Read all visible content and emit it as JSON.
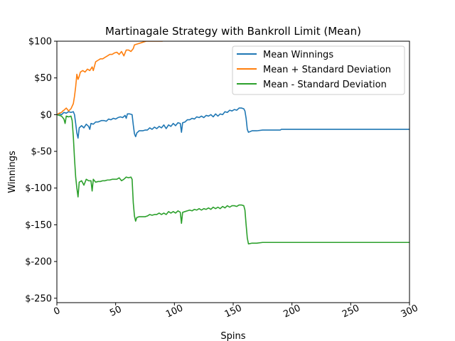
{
  "chart_data": {
    "type": "line",
    "title": "Martinagale Strategy with Bankroll Limit (Mean)",
    "xlabel": "Spins",
    "ylabel": "Winnings",
    "xlim": [
      0,
      300
    ],
    "ylim": [
      -256,
      100
    ],
    "x_ticks": [
      0,
      50,
      100,
      150,
      200,
      250,
      300
    ],
    "y_ticks": [
      {
        "value": 100,
        "label": "$100"
      },
      {
        "value": 50,
        "label": "$50"
      },
      {
        "value": 0,
        "label": "$0"
      },
      {
        "value": -50,
        "label": "$-50"
      },
      {
        "value": -100,
        "label": "$-100"
      },
      {
        "value": -150,
        "label": "$-150"
      },
      {
        "value": -200,
        "label": "$-200"
      },
      {
        "value": -250,
        "label": "$-250"
      }
    ],
    "grid": false,
    "legend_position": "top-right",
    "series": [
      {
        "name": "Mean Winnings",
        "color": "#1f77b4",
        "points": [
          [
            0,
            0
          ],
          [
            2,
            1
          ],
          [
            4,
            0
          ],
          [
            6,
            3
          ],
          [
            8,
            2
          ],
          [
            10,
            4
          ],
          [
            12,
            3
          ],
          [
            14,
            4
          ],
          [
            15,
            0
          ],
          [
            16,
            -12
          ],
          [
            17,
            -25
          ],
          [
            18,
            -32
          ],
          [
            19,
            -18
          ],
          [
            21,
            -15
          ],
          [
            23,
            -18
          ],
          [
            25,
            -13
          ],
          [
            27,
            -16
          ],
          [
            28,
            -20
          ],
          [
            29,
            -12
          ],
          [
            31,
            -13
          ],
          [
            33,
            -10
          ],
          [
            35,
            -10
          ],
          [
            38,
            -8
          ],
          [
            40,
            -8
          ],
          [
            42,
            -9
          ],
          [
            44,
            -6
          ],
          [
            46,
            -7
          ],
          [
            48,
            -5
          ],
          [
            50,
            -6
          ],
          [
            52,
            -4
          ],
          [
            54,
            -3
          ],
          [
            56,
            -4
          ],
          [
            58,
            -1
          ],
          [
            59,
            -5
          ],
          [
            60,
            1
          ],
          [
            62,
            1
          ],
          [
            64,
            0
          ],
          [
            65,
            -14
          ],
          [
            66,
            -26
          ],
          [
            67,
            -30
          ],
          [
            68,
            -25
          ],
          [
            70,
            -22
          ],
          [
            73,
            -22
          ],
          [
            75,
            -21
          ],
          [
            77,
            -21
          ],
          [
            79,
            -18
          ],
          [
            81,
            -20
          ],
          [
            83,
            -17
          ],
          [
            85,
            -19
          ],
          [
            87,
            -16
          ],
          [
            89,
            -18
          ],
          [
            91,
            -14
          ],
          [
            93,
            -19
          ],
          [
            95,
            -14
          ],
          [
            97,
            -16
          ],
          [
            99,
            -12
          ],
          [
            101,
            -15
          ],
          [
            103,
            -11
          ],
          [
            105,
            -12
          ],
          [
            106,
            -24
          ],
          [
            107,
            -11
          ],
          [
            109,
            -10
          ],
          [
            111,
            -7
          ],
          [
            113,
            -7
          ],
          [
            115,
            -5
          ],
          [
            117,
            -6
          ],
          [
            119,
            -3
          ],
          [
            121,
            -4
          ],
          [
            123,
            -2
          ],
          [
            125,
            -4
          ],
          [
            127,
            -1
          ],
          [
            129,
            -2
          ],
          [
            131,
            0
          ],
          [
            133,
            -3
          ],
          [
            135,
            1
          ],
          [
            137,
            -2
          ],
          [
            139,
            1
          ],
          [
            141,
            0
          ],
          [
            143,
            4
          ],
          [
            145,
            3
          ],
          [
            147,
            6
          ],
          [
            149,
            5
          ],
          [
            151,
            7
          ],
          [
            153,
            6
          ],
          [
            155,
            9
          ],
          [
            157,
            9
          ],
          [
            159,
            8
          ],
          [
            160,
            5
          ],
          [
            161,
            -5
          ],
          [
            162,
            -20
          ],
          [
            163,
            -24
          ],
          [
            166,
            -22
          ],
          [
            170,
            -22
          ],
          [
            175,
            -21
          ],
          [
            180,
            -21
          ],
          [
            185,
            -21
          ],
          [
            190,
            -21
          ],
          [
            191,
            -20
          ],
          [
            192,
            -20
          ],
          [
            200,
            -20
          ],
          [
            250,
            -20
          ],
          [
            300,
            -20
          ]
        ]
      },
      {
        "name": "Mean + Standard Deviation",
        "color": "#ff7f0e",
        "points": [
          [
            0,
            0
          ],
          [
            2,
            2
          ],
          [
            4,
            3
          ],
          [
            5,
            5
          ],
          [
            6,
            6
          ],
          [
            8,
            9
          ],
          [
            10,
            5
          ],
          [
            12,
            8
          ],
          [
            14,
            15
          ],
          [
            15,
            25
          ],
          [
            16,
            38
          ],
          [
            17,
            55
          ],
          [
            18,
            48
          ],
          [
            19,
            52
          ],
          [
            20,
            58
          ],
          [
            22,
            60
          ],
          [
            24,
            58
          ],
          [
            26,
            62
          ],
          [
            28,
            60
          ],
          [
            30,
            65
          ],
          [
            31,
            60
          ],
          [
            33,
            72
          ],
          [
            35,
            74
          ],
          [
            37,
            76
          ],
          [
            39,
            76
          ],
          [
            41,
            78
          ],
          [
            43,
            80
          ],
          [
            45,
            82
          ],
          [
            47,
            82
          ],
          [
            49,
            84
          ],
          [
            51,
            85
          ],
          [
            53,
            82
          ],
          [
            55,
            86
          ],
          [
            57,
            80
          ],
          [
            59,
            88
          ],
          [
            61,
            88
          ],
          [
            63,
            86
          ],
          [
            65,
            90
          ],
          [
            66,
            95
          ],
          [
            68,
            96
          ],
          [
            70,
            97
          ],
          [
            72,
            98
          ],
          [
            74,
            99
          ],
          [
            76,
            100
          ],
          [
            80,
            100
          ],
          [
            85,
            100
          ],
          [
            90,
            100
          ]
        ]
      },
      {
        "name": "Mean - Standard Deviation",
        "color": "#2ca02c",
        "points": [
          [
            0,
            0
          ],
          [
            2,
            -1
          ],
          [
            4,
            -2
          ],
          [
            5,
            -4
          ],
          [
            6,
            -6
          ],
          [
            7,
            -12
          ],
          [
            8,
            -2
          ],
          [
            10,
            -3
          ],
          [
            12,
            -2
          ],
          [
            13,
            -8
          ],
          [
            14,
            -30
          ],
          [
            15,
            -60
          ],
          [
            16,
            -85
          ],
          [
            17,
            -100
          ],
          [
            18,
            -112
          ],
          [
            19,
            -92
          ],
          [
            21,
            -90
          ],
          [
            23,
            -96
          ],
          [
            25,
            -88
          ],
          [
            27,
            -90
          ],
          [
            29,
            -90
          ],
          [
            30,
            -104
          ],
          [
            31,
            -88
          ],
          [
            33,
            -92
          ],
          [
            35,
            -91
          ],
          [
            37,
            -91
          ],
          [
            39,
            -90
          ],
          [
            41,
            -90
          ],
          [
            43,
            -89
          ],
          [
            45,
            -89
          ],
          [
            47,
            -88
          ],
          [
            49,
            -88
          ],
          [
            51,
            -88
          ],
          [
            53,
            -86
          ],
          [
            55,
            -90
          ],
          [
            57,
            -88
          ],
          [
            59,
            -85
          ],
          [
            61,
            -86
          ],
          [
            63,
            -85
          ],
          [
            64,
            -88
          ],
          [
            65,
            -120
          ],
          [
            66,
            -138
          ],
          [
            67,
            -145
          ],
          [
            68,
            -140
          ],
          [
            70,
            -139
          ],
          [
            73,
            -139
          ],
          [
            75,
            -139
          ],
          [
            77,
            -138
          ],
          [
            79,
            -136
          ],
          [
            81,
            -137
          ],
          [
            83,
            -136
          ],
          [
            85,
            -136
          ],
          [
            87,
            -134
          ],
          [
            89,
            -136
          ],
          [
            91,
            -134
          ],
          [
            93,
            -136
          ],
          [
            95,
            -132
          ],
          [
            97,
            -134
          ],
          [
            99,
            -132
          ],
          [
            101,
            -134
          ],
          [
            103,
            -131
          ],
          [
            105,
            -133
          ],
          [
            106,
            -148
          ],
          [
            107,
            -133
          ],
          [
            109,
            -132
          ],
          [
            111,
            -131
          ],
          [
            113,
            -130
          ],
          [
            115,
            -131
          ],
          [
            117,
            -129
          ],
          [
            119,
            -130
          ],
          [
            121,
            -128
          ],
          [
            123,
            -130
          ],
          [
            125,
            -128
          ],
          [
            127,
            -129
          ],
          [
            129,
            -127
          ],
          [
            131,
            -129
          ],
          [
            133,
            -126
          ],
          [
            135,
            -128
          ],
          [
            137,
            -126
          ],
          [
            139,
            -128
          ],
          [
            141,
            -125
          ],
          [
            143,
            -127
          ],
          [
            145,
            -124
          ],
          [
            147,
            -126
          ],
          [
            149,
            -124
          ],
          [
            151,
            -124
          ],
          [
            153,
            -125
          ],
          [
            155,
            -123
          ],
          [
            157,
            -123
          ],
          [
            159,
            -124
          ],
          [
            160,
            -130
          ],
          [
            161,
            -150
          ],
          [
            162,
            -168
          ],
          [
            163,
            -176
          ],
          [
            166,
            -175
          ],
          [
            170,
            -175
          ],
          [
            175,
            -174
          ],
          [
            180,
            -174
          ],
          [
            185,
            -174
          ],
          [
            190,
            -174
          ],
          [
            192,
            -174
          ],
          [
            200,
            -174
          ],
          [
            250,
            -174
          ],
          [
            300,
            -174
          ]
        ]
      }
    ]
  }
}
